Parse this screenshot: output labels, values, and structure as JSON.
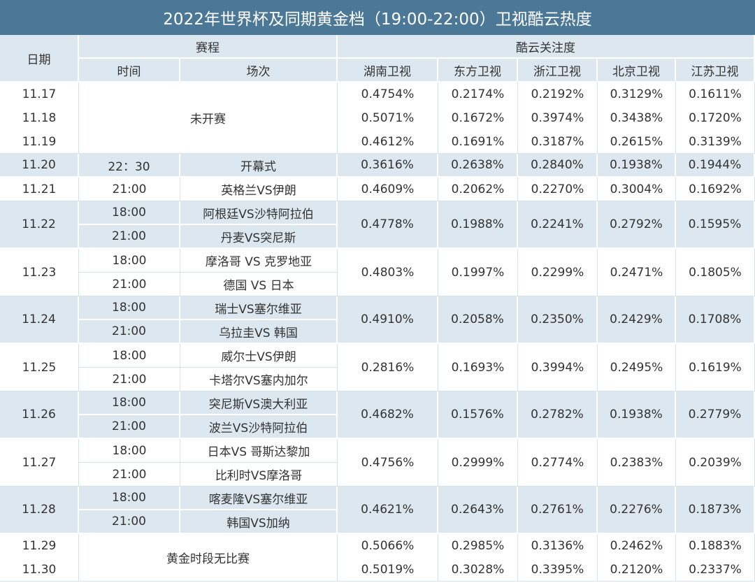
{
  "header": {
    "title": "2022年世界杯及同期黄金档（19:00-22:00）卫视酷云热度",
    "date": "日期",
    "schedule": "赛程",
    "time": "时间",
    "match": "场次",
    "heat": "酷云关注度",
    "channels": [
      "湖南卫视",
      "东方卫视",
      "浙江卫视",
      "北京卫视",
      "江苏卫视"
    ]
  },
  "blocks": [
    {
      "dates": [
        "11.17",
        "11.18",
        "11.19"
      ],
      "note": "未开赛",
      "heat": [
        [
          "0.4754%",
          "0.2174%",
          "0.2192%",
          "0.3129%",
          "0.1611%"
        ],
        [
          "0.5071%",
          "0.1672%",
          "0.3974%",
          "0.3438%",
          "0.1720%"
        ],
        [
          "0.4612%",
          "0.1691%",
          "0.3187%",
          "0.2615%",
          "0.3139%"
        ]
      ]
    },
    {
      "date": "11.20",
      "games": [
        {
          "time": "22：30",
          "match": "开幕式"
        }
      ],
      "heat": [
        "0.3616%",
        "0.2638%",
        "0.2840%",
        "0.1938%",
        "0.1944%"
      ]
    },
    {
      "date": "11.21",
      "games": [
        {
          "time": "21:00",
          "match": "英格兰VS伊朗"
        }
      ],
      "heat": [
        "0.4609%",
        "0.2062%",
        "0.2270%",
        "0.3004%",
        "0.1692%"
      ]
    },
    {
      "date": "11.22",
      "games": [
        {
          "time": "18:00",
          "match": "阿根廷VS沙特阿拉伯"
        },
        {
          "time": "21:00",
          "match": "丹麦VS突尼斯"
        }
      ],
      "heat": [
        "0.4778%",
        "0.1988%",
        "0.2241%",
        "0.2792%",
        "0.1595%"
      ]
    },
    {
      "date": "11.23",
      "games": [
        {
          "time": "18:00",
          "match": "摩洛哥 VS 克罗地亚"
        },
        {
          "time": "21:00",
          "match": "德国 VS 日本"
        }
      ],
      "heat": [
        "0.4803%",
        "0.1997%",
        "0.2299%",
        "0.2471%",
        "0.1805%"
      ]
    },
    {
      "date": "11.24",
      "games": [
        {
          "time": "18:00",
          "match": "瑞士VS塞尔维亚"
        },
        {
          "time": "21:00",
          "match": "乌拉圭VS 韩国"
        }
      ],
      "heat": [
        "0.4910%",
        "0.2058%",
        "0.2350%",
        "0.2429%",
        "0.1708%"
      ]
    },
    {
      "date": "11.25",
      "games": [
        {
          "time": "18:00",
          "match": "威尔士VS伊朗"
        },
        {
          "time": "21:00",
          "match": "卡塔尔VS塞内加尔"
        }
      ],
      "heat": [
        "0.2816%",
        "0.1693%",
        "0.3994%",
        "0.2495%",
        "0.1619%"
      ]
    },
    {
      "date": "11.26",
      "games": [
        {
          "time": "18:00",
          "match": "突尼斯VS澳大利亚"
        },
        {
          "time": "21:00",
          "match": "波兰VS沙特阿拉伯"
        }
      ],
      "heat": [
        "0.4682%",
        "0.1576%",
        "0.2782%",
        "0.1938%",
        "0.2779%"
      ]
    },
    {
      "date": "11.27",
      "games": [
        {
          "time": "18:00",
          "match": "日本VS 哥斯达黎加"
        },
        {
          "time": "21:00",
          "match": "比利时VS摩洛哥"
        }
      ],
      "heat": [
        "0.4756%",
        "0.2999%",
        "0.2774%",
        "0.2383%",
        "0.2039%"
      ]
    },
    {
      "date": "11.28",
      "games": [
        {
          "time": "18:00",
          "match": "喀麦隆VS塞尔维亚"
        },
        {
          "time": "21:00",
          "match": "韩国VS加纳"
        }
      ],
      "heat": [
        "0.4621%",
        "0.2643%",
        "0.2761%",
        "0.2276%",
        "0.1873%"
      ]
    },
    {
      "dates": [
        "11.29",
        "11.30"
      ],
      "note": "黄金时段无比赛",
      "heat": [
        [
          "0.5066%",
          "0.2985%",
          "0.3136%",
          "0.2462%",
          "0.1883%"
        ],
        [
          "0.5019%",
          "0.3028%",
          "0.3395%",
          "0.2120%",
          "0.2337%"
        ]
      ]
    }
  ]
}
